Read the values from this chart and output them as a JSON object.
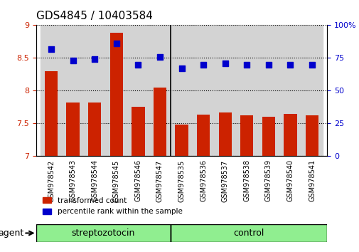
{
  "title": "GDS4845 / 10403584",
  "categories": [
    "GSM978542",
    "GSM978543",
    "GSM978544",
    "GSM978545",
    "GSM978546",
    "GSM978547",
    "GSM978535",
    "GSM978536",
    "GSM978537",
    "GSM978538",
    "GSM978539",
    "GSM978540",
    "GSM978541"
  ],
  "bar_values": [
    8.3,
    7.82,
    7.82,
    8.88,
    7.76,
    8.05,
    7.48,
    7.63,
    7.67,
    7.62,
    7.6,
    7.65,
    7.62
  ],
  "dot_values": [
    82,
    73,
    74,
    86,
    70,
    76,
    67,
    70,
    71,
    70,
    70,
    70,
    70
  ],
  "bar_color": "#cc2200",
  "dot_color": "#0000cc",
  "ylim_left": [
    7,
    9
  ],
  "ylim_right": [
    0,
    100
  ],
  "yticks_left": [
    7,
    7.5,
    8,
    8.5,
    9
  ],
  "yticks_right": [
    0,
    25,
    50,
    75,
    100
  ],
  "group_labels": [
    "streptozotocin",
    "control"
  ],
  "group_colors": [
    "#90ee90",
    "#90ee90"
  ],
  "group_ranges": [
    6,
    7
  ],
  "agent_label": "agent",
  "legend_entries": [
    "transformed count",
    "percentile rank within the sample"
  ],
  "legend_colors": [
    "#cc2200",
    "#0000cc"
  ],
  "bar_width": 0.6,
  "separator_index": 6,
  "background_color": "#ffffff",
  "tick_label_color_left": "#cc2200",
  "tick_label_color_right": "#0000cc"
}
